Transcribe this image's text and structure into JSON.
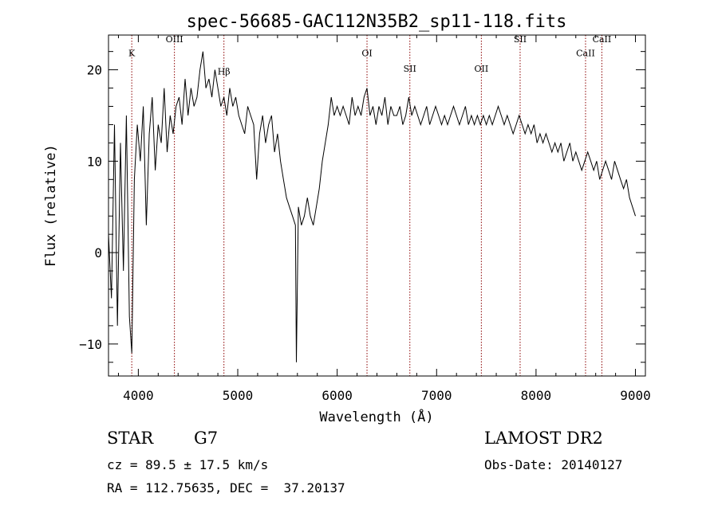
{
  "chart_data": {
    "type": "line",
    "title": "spec-56685-GAC112N35B2_sp11-118.fits",
    "xlabel": "Wavelength (Å)",
    "ylabel": "Flux (relative)",
    "xlim": [
      3700,
      9100
    ],
    "ylim": [
      -13.5,
      23.8
    ],
    "x_ticks": [
      4000,
      5000,
      6000,
      7000,
      8000,
      9000
    ],
    "y_ticks": [
      -10,
      0,
      10,
      20
    ],
    "line_color": "#000000",
    "marker_color": "#8b0000",
    "lines": [
      {
        "label": "K",
        "x": 3934,
        "label_y": 21.5
      },
      {
        "label": "OIII",
        "x": 4363,
        "label_y": 23.0
      },
      {
        "label": "Hβ",
        "x": 4861,
        "label_y": 19.5
      },
      {
        "label": "OI",
        "x": 6300,
        "label_y": 21.5
      },
      {
        "label": "SII",
        "x": 6731,
        "label_y": 19.8
      },
      {
        "label": "OII",
        "x": 7450,
        "label_y": 19.8
      },
      {
        "label": "SII",
        "x": 7840,
        "label_y": 23.0
      },
      {
        "label": "CaII",
        "x": 8498,
        "label_y": 21.5
      },
      {
        "label": "CaII",
        "x": 8662,
        "label_y": 23.0
      }
    ],
    "series": [
      {
        "x": [
          3700,
          3730,
          3760,
          3790,
          3820,
          3850,
          3880,
          3910,
          3934,
          3960,
          3990,
          4020,
          4050,
          4080,
          4110,
          4140,
          4170,
          4200,
          4230,
          4260,
          4290,
          4320,
          4350,
          4380,
          4410,
          4440,
          4470,
          4500,
          4530,
          4560,
          4590,
          4620,
          4650,
          4680,
          4710,
          4740,
          4770,
          4800,
          4830,
          4861,
          4890,
          4920,
          4950,
          4980,
          5010,
          5040,
          5070,
          5100,
          5130,
          5160,
          5190,
          5220,
          5250,
          5280,
          5310,
          5340,
          5370,
          5400,
          5430,
          5460,
          5490,
          5520,
          5550,
          5580,
          5590,
          5610,
          5640,
          5670,
          5700,
          5730,
          5760,
          5790,
          5820,
          5850,
          5880,
          5910,
          5940,
          5970,
          6000,
          6030,
          6060,
          6090,
          6120,
          6150,
          6180,
          6210,
          6240,
          6270,
          6300,
          6330,
          6360,
          6390,
          6420,
          6450,
          6480,
          6510,
          6540,
          6570,
          6600,
          6630,
          6660,
          6690,
          6720,
          6750,
          6780,
          6810,
          6840,
          6870,
          6900,
          6930,
          6960,
          6990,
          7020,
          7050,
          7080,
          7110,
          7140,
          7170,
          7200,
          7230,
          7260,
          7290,
          7320,
          7350,
          7380,
          7410,
          7440,
          7470,
          7500,
          7530,
          7560,
          7590,
          7620,
          7650,
          7680,
          7710,
          7740,
          7770,
          7800,
          7830,
          7860,
          7890,
          7920,
          7950,
          7980,
          8010,
          8040,
          8070,
          8100,
          8130,
          8160,
          8190,
          8220,
          8250,
          8280,
          8310,
          8340,
          8370,
          8400,
          8430,
          8460,
          8490,
          8520,
          8550,
          8580,
          8610,
          8640,
          8670,
          8700,
          8730,
          8760,
          8790,
          8820,
          8850,
          8880,
          8910,
          8940,
          8970,
          9000
        ],
        "y": [
          2,
          -5,
          14,
          -8,
          12,
          -2,
          15,
          -7,
          -11,
          8,
          14,
          10,
          16,
          3,
          13,
          17,
          9,
          14,
          12,
          18,
          11,
          15,
          13,
          16,
          17,
          14,
          19,
          15,
          18,
          16,
          17,
          20,
          22,
          18,
          19,
          17,
          20,
          18,
          16,
          17,
          15,
          18,
          16,
          17,
          15,
          14,
          13,
          16,
          15,
          14,
          8,
          13,
          15,
          12,
          14,
          15,
          11,
          13,
          10,
          8,
          6,
          5,
          4,
          3,
          -12,
          5,
          3,
          4,
          6,
          4,
          3,
          5,
          7,
          10,
          12,
          14,
          17,
          15,
          16,
          15,
          16,
          15,
          14,
          17,
          15,
          16,
          15,
          17,
          18,
          15,
          16,
          14,
          16,
          15,
          17,
          14,
          16,
          15,
          15,
          16,
          14,
          15,
          17,
          15,
          16,
          15,
          14,
          15,
          16,
          14,
          15,
          16,
          15,
          14,
          15,
          14,
          15,
          16,
          15,
          14,
          15,
          16,
          14,
          15,
          14,
          15,
          14,
          15,
          14,
          15,
          14,
          15,
          16,
          15,
          14,
          15,
          14,
          13,
          14,
          15,
          14,
          13,
          14,
          13,
          14,
          12,
          13,
          12,
          13,
          12,
          11,
          12,
          11,
          12,
          10,
          11,
          12,
          10,
          11,
          10,
          9,
          10,
          11,
          10,
          9,
          10,
          8,
          9,
          10,
          9,
          8,
          10,
          9,
          8,
          7,
          8,
          6,
          5,
          4
        ]
      }
    ]
  },
  "info": {
    "object_type": "STAR",
    "subclass": "G7",
    "survey": "LAMOST DR2",
    "cz": "cz = 89.5 ± 17.5 km/s",
    "obs_date": "Obs-Date: 20140127",
    "coords": "RA = 112.75635, DEC =  37.20137"
  }
}
